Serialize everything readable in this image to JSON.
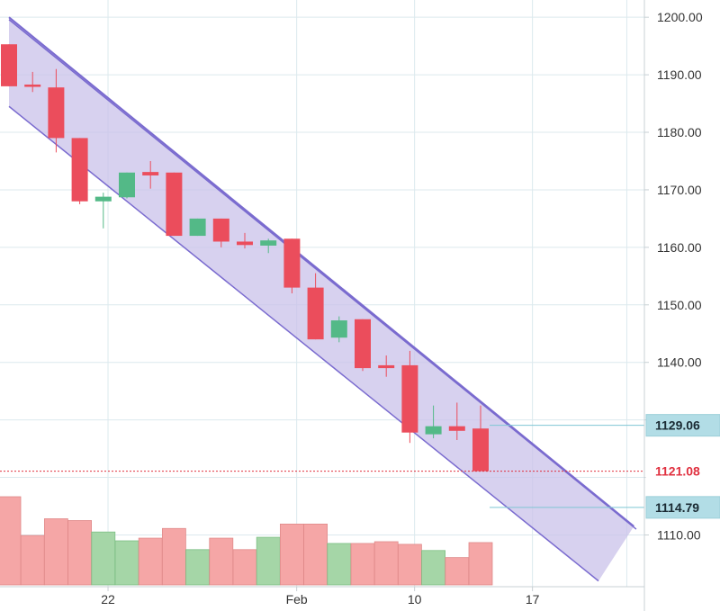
{
  "chart_data": {
    "type": "candlestick",
    "y_axis": {
      "range": [
        1101,
        1203
      ],
      "ticks": [
        "1110.00",
        "1120.00",
        "1130.00",
        "1140.00",
        "1150.00",
        "1160.00",
        "1170.00",
        "1180.00",
        "1190.00",
        "1200.00"
      ]
    },
    "x_axis": {
      "tick_labels": [
        "22",
        "Feb",
        "10",
        "17"
      ]
    },
    "grid": true,
    "candles": [
      {
        "o": 1195.3,
        "h": 1195.3,
        "l": 1188.0,
        "c": 1188.0
      },
      {
        "o": 1188.3,
        "h": 1190.5,
        "l": 1187.0,
        "c": 1187.9
      },
      {
        "o": 1187.8,
        "h": 1191.0,
        "l": 1176.5,
        "c": 1179.0
      },
      {
        "o": 1179.0,
        "h": 1179.0,
        "l": 1167.5,
        "c": 1168.0
      },
      {
        "o": 1168.0,
        "h": 1169.5,
        "l": 1163.3,
        "c": 1168.8
      },
      {
        "o": 1168.7,
        "h": 1173.0,
        "l": 1168.5,
        "c": 1173.0
      },
      {
        "o": 1173.1,
        "h": 1175.0,
        "l": 1170.2,
        "c": 1172.5
      },
      {
        "o": 1173.0,
        "h": 1173.0,
        "l": 1162.0,
        "c": 1162.0
      },
      {
        "o": 1162.0,
        "h": 1165.0,
        "l": 1162.0,
        "c": 1165.0
      },
      {
        "o": 1165.0,
        "h": 1165.0,
        "l": 1160.0,
        "c": 1161.0
      },
      {
        "o": 1161.0,
        "h": 1162.5,
        "l": 1159.8,
        "c": 1160.4
      },
      {
        "o": 1160.3,
        "h": 1161.5,
        "l": 1159.0,
        "c": 1161.2
      },
      {
        "o": 1161.5,
        "h": 1161.5,
        "l": 1152.0,
        "c": 1153.0
      },
      {
        "o": 1153.0,
        "h": 1155.5,
        "l": 1144.0,
        "c": 1144.0
      },
      {
        "o": 1144.3,
        "h": 1148.0,
        "l": 1143.5,
        "c": 1147.3
      },
      {
        "o": 1147.5,
        "h": 1147.5,
        "l": 1138.5,
        "c": 1139.0
      },
      {
        "o": 1139.5,
        "h": 1141.2,
        "l": 1137.5,
        "c": 1139.0
      },
      {
        "o": 1139.5,
        "h": 1142.0,
        "l": 1126.0,
        "c": 1127.8
      },
      {
        "o": 1127.5,
        "h": 1132.5,
        "l": 1126.8,
        "c": 1128.9
      },
      {
        "o": 1128.9,
        "h": 1133.0,
        "l": 1126.5,
        "c": 1128.1
      },
      {
        "o": 1128.5,
        "h": 1132.5,
        "l": 1121.08,
        "c": 1121.08
      }
    ],
    "volume": [
      {
        "v": 1.0,
        "dir": "down"
      },
      {
        "v": 0.56,
        "dir": "down"
      },
      {
        "v": 0.75,
        "dir": "down"
      },
      {
        "v": 0.73,
        "dir": "down"
      },
      {
        "v": 0.6,
        "dir": "up"
      },
      {
        "v": 0.5,
        "dir": "up"
      },
      {
        "v": 0.53,
        "dir": "down"
      },
      {
        "v": 0.64,
        "dir": "down"
      },
      {
        "v": 0.4,
        "dir": "up"
      },
      {
        "v": 0.53,
        "dir": "down"
      },
      {
        "v": 0.4,
        "dir": "down"
      },
      {
        "v": 0.54,
        "dir": "up"
      },
      {
        "v": 0.69,
        "dir": "down"
      },
      {
        "v": 0.69,
        "dir": "down"
      },
      {
        "v": 0.47,
        "dir": "up"
      },
      {
        "v": 0.47,
        "dir": "down"
      },
      {
        "v": 0.49,
        "dir": "down"
      },
      {
        "v": 0.46,
        "dir": "down"
      },
      {
        "v": 0.39,
        "dir": "up"
      },
      {
        "v": 0.31,
        "dir": "down"
      },
      {
        "v": 0.48,
        "dir": "down"
      }
    ],
    "channel": {
      "upper": [
        [
          0,
          1200.0
        ],
        [
          26.5,
          1111.5
        ]
      ],
      "lower": [
        [
          0,
          1184.5
        ],
        [
          25,
          1102.0
        ]
      ],
      "upper2": [
        [
          0,
          1199.6
        ],
        [
          26.6,
          1111.0
        ]
      ]
    },
    "price_tags": [
      {
        "label": "1129.06",
        "value": 1129.06,
        "style": "teal"
      },
      {
        "label": "1121.08",
        "value": 1121.08,
        "style": "red"
      },
      {
        "label": "1114.79",
        "value": 1114.79,
        "style": "teal"
      }
    ],
    "colors": {
      "up": "#53b987",
      "down": "#eb4d5c",
      "vol_up": "#a5d6a7",
      "vol_down": "#f5a6a6",
      "channel_fill": "#c9c1ea",
      "channel_line": "#7a6bcf",
      "tag_teal": "#b2dde6",
      "tag_red_text": "#e0303f",
      "grid": "#dce9ee"
    }
  }
}
